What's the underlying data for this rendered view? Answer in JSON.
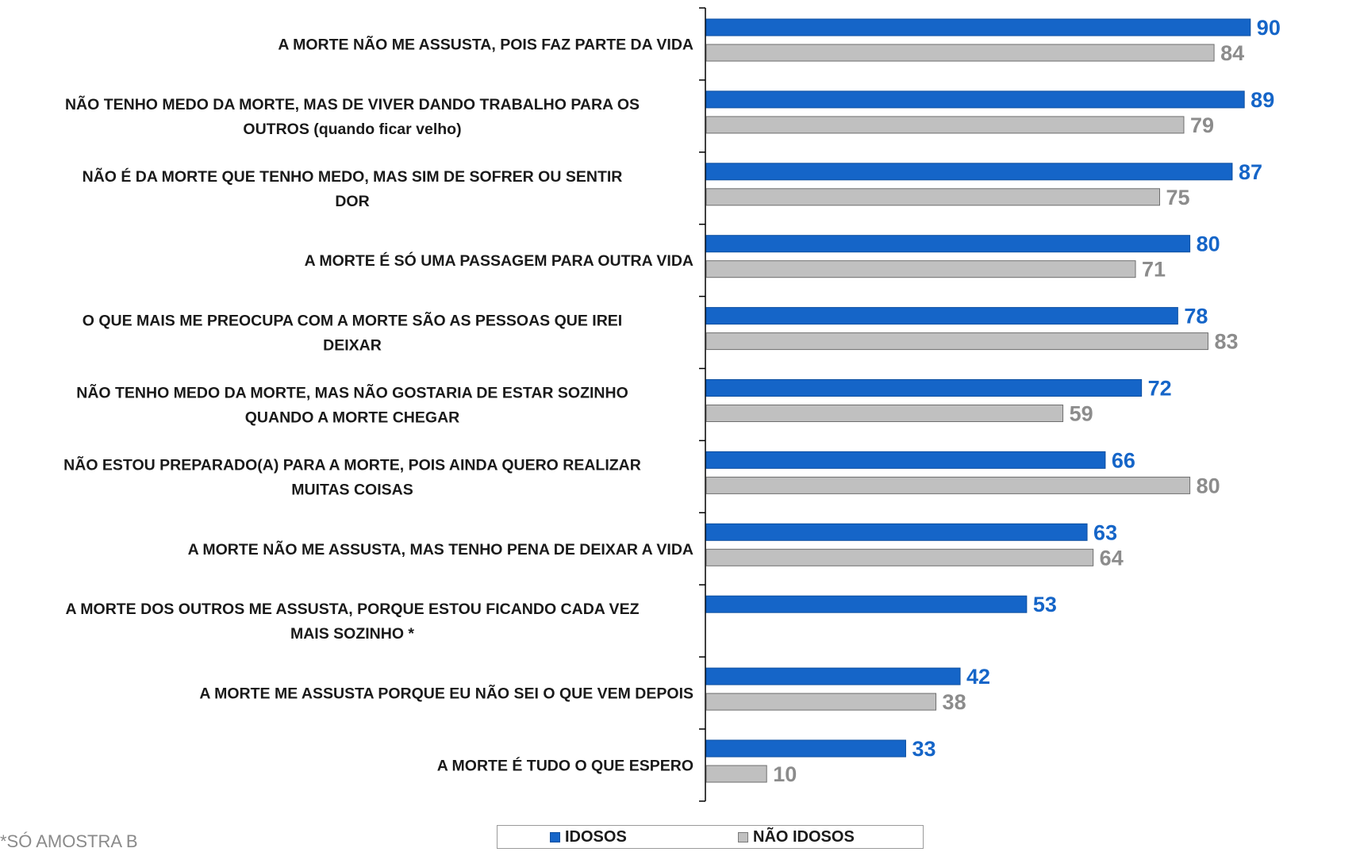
{
  "chart_data": {
    "type": "bar",
    "orientation": "horizontal",
    "categories": [
      [
        "A MORTE NÃO ME ASSUSTA, POIS FAZ PARTE DA VIDA"
      ],
      [
        "NÃO TENHO MEDO DA MORTE, MAS DE VIVER DANDO TRABALHO PARA OS",
        "OUTROS (quando ficar velho)"
      ],
      [
        "NÃO É DA MORTE QUE TENHO MEDO, MAS SIM DE SOFRER OU SENTIR",
        "DOR"
      ],
      [
        "A MORTE É SÓ UMA PASSAGEM PARA OUTRA VIDA"
      ],
      [
        "O QUE MAIS ME PREOCUPA COM A MORTE SÃO AS PESSOAS QUE IREI",
        "DEIXAR"
      ],
      [
        "NÃO TENHO MEDO DA MORTE, MAS NÃO GOSTARIA DE ESTAR SOZINHO",
        "QUANDO A MORTE CHEGAR"
      ],
      [
        "NÃO ESTOU PREPARADO(A) PARA A MORTE, POIS AINDA QUERO REALIZAR",
        "MUITAS COISAS"
      ],
      [
        "A MORTE NÃO ME ASSUSTA, MAS TENHO PENA DE DEIXAR A VIDA"
      ],
      [
        "A MORTE DOS OUTROS ME ASSUSTA, PORQUE ESTOU FICANDO CADA VEZ",
        "MAIS SOZINHO *"
      ],
      [
        "A MORTE ME ASSUSTA PORQUE EU NÃO SEI O QUE VEM DEPOIS"
      ],
      [
        "A MORTE É TUDO O QUE ESPERO"
      ]
    ],
    "series": [
      {
        "name": "IDOSOS",
        "color": "#1565c8",
        "label_color": "#1565c8",
        "values": [
          90,
          89,
          87,
          80,
          78,
          72,
          66,
          63,
          53,
          42,
          33
        ]
      },
      {
        "name": "NÃO IDOSOS",
        "color": "#c0c0c0",
        "label_color": "#8c8c8c",
        "values": [
          84,
          79,
          75,
          71,
          83,
          59,
          80,
          64,
          null,
          38,
          10
        ]
      }
    ],
    "xlim": [
      0,
      100
    ],
    "grid": false,
    "legend_position": "bottom-center"
  },
  "legend": {
    "items": [
      "IDOSOS",
      "NÃO IDOSOS"
    ]
  },
  "footnote": "*SÓ AMOSTRA B"
}
